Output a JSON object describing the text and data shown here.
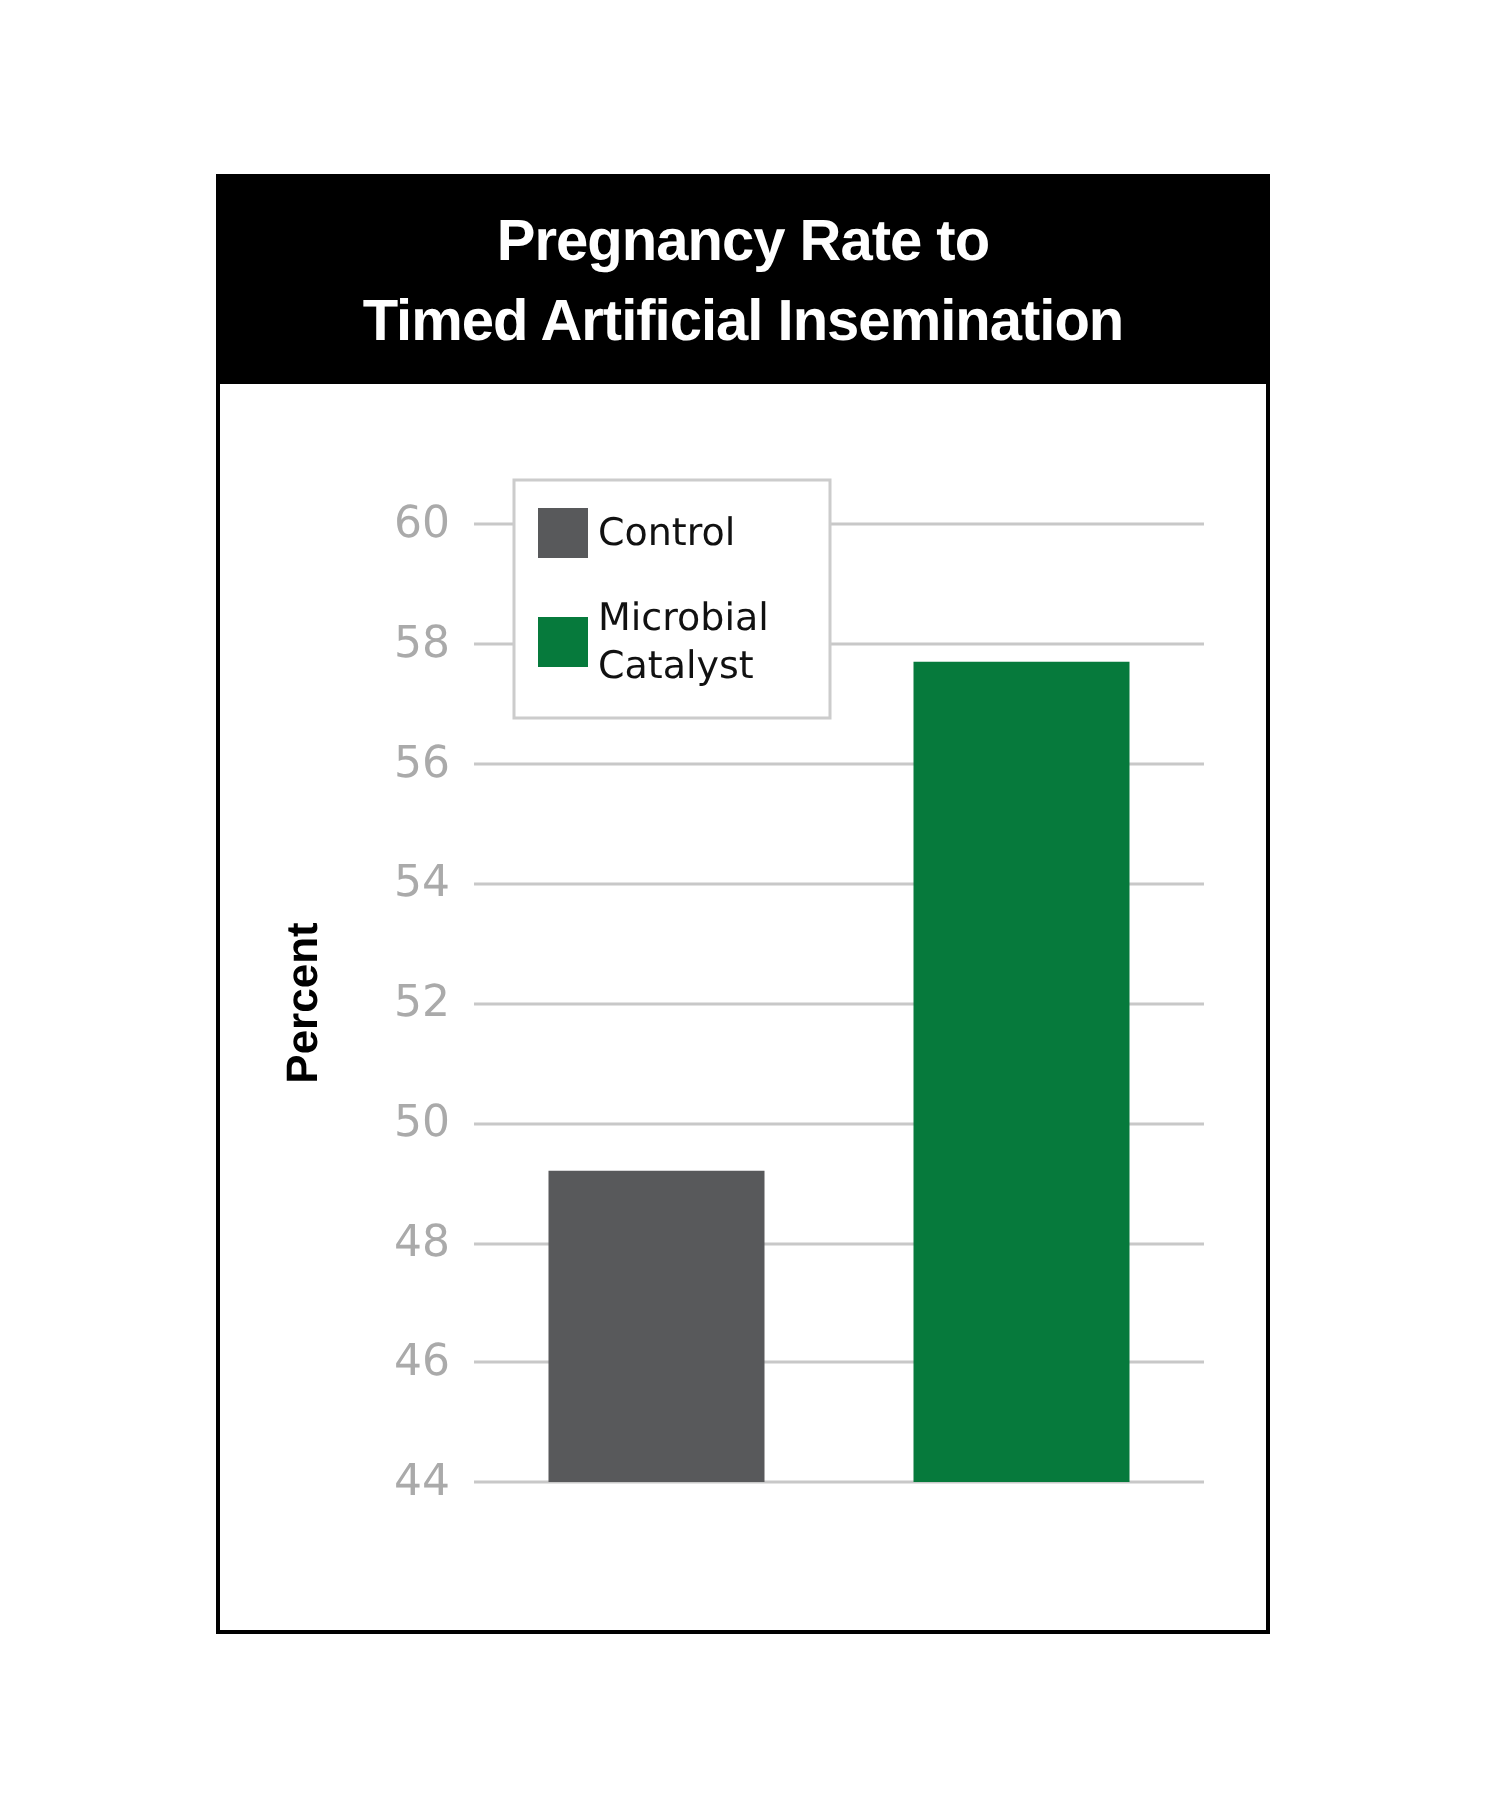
{
  "chart_data": {
    "type": "bar",
    "title": "Pregnancy Rate to\nTimed Artificial Insemination",
    "ylabel": "Percent",
    "categories": [
      null,
      null
    ],
    "series": [
      {
        "name": "Control",
        "color": "#58595b",
        "values": [
          49.2,
          null
        ]
      },
      {
        "name": "Microbial Catalyst",
        "color": "#067a3c",
        "values": [
          null,
          57.7
        ]
      }
    ],
    "ylim": [
      44,
      60
    ],
    "yticks": [
      44,
      46,
      48,
      50,
      52,
      54,
      56,
      58,
      60
    ],
    "grid": "y",
    "legend": "top left"
  }
}
